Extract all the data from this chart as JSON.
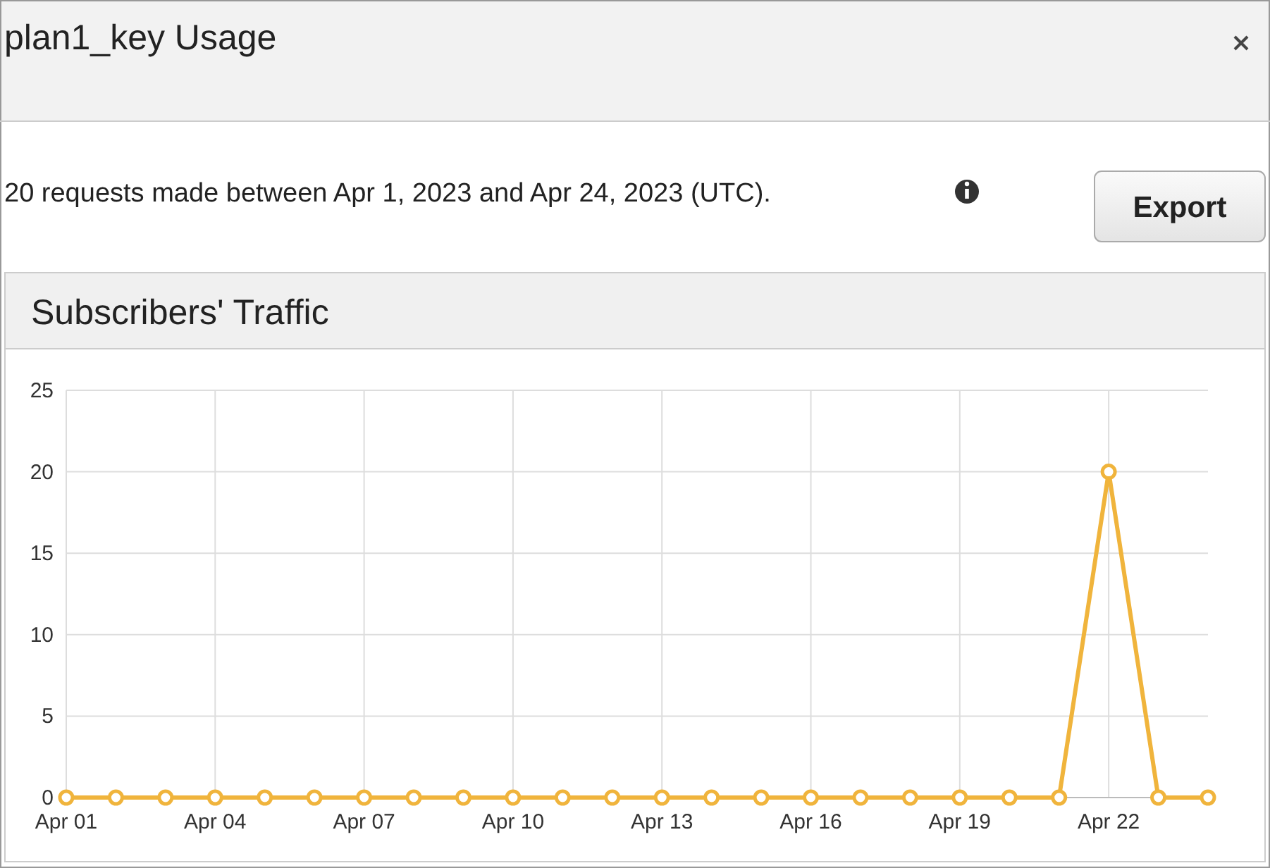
{
  "chart_data": {
    "type": "line",
    "title": "plan1_key Usage",
    "subtitle": "20 requests made between Apr 1, 2023 and Apr 24, 2023 (UTC).",
    "annotations": [
      "Export",
      "Subscribers' Traffic"
    ],
    "x": [
      "--04-01",
      "--04-02",
      "--04-03",
      "--04-04",
      "--04-05",
      "--04-06",
      "--04-07",
      "--04-08",
      "--04-09",
      "--04-10",
      "--04-11",
      "--04-12",
      "--04-13",
      "--04-14",
      "--04-15",
      "--04-16",
      "--04-17",
      "--04-18",
      "--04-19",
      "--04-20",
      "--04-21",
      "--04-22",
      "--04-23",
      "--04-24"
    ],
    "series": [
      {
        "color": "#f0b43c",
        "values": [
          0,
          0,
          0,
          0,
          0,
          0,
          0,
          0,
          0,
          0,
          0,
          0,
          0,
          0,
          0,
          0,
          0,
          0,
          0,
          0,
          0,
          20,
          0,
          0
        ]
      }
    ],
    "xlim": [
      "--04-01",
      "--04-24"
    ],
    "xticks": [
      {
        "value": "--04-01",
        "label": "Apr 01"
      },
      {
        "value": "--04-04",
        "label": "Apr 04"
      },
      {
        "value": "--04-07",
        "label": "Apr 07"
      },
      {
        "value": "--04-10",
        "label": "Apr 10"
      },
      {
        "value": "--04-13",
        "label": "Apr 13"
      },
      {
        "value": "--04-16",
        "label": "Apr 16"
      },
      {
        "value": "--04-19",
        "label": "Apr 19"
      },
      {
        "value": "--04-22",
        "label": "Apr 22"
      }
    ],
    "ylim": [
      0,
      25
    ],
    "yticks": [
      0,
      5,
      10,
      15,
      20,
      25
    ],
    "grid": true,
    "marker": "circle",
    "line_style": "solid"
  }
}
